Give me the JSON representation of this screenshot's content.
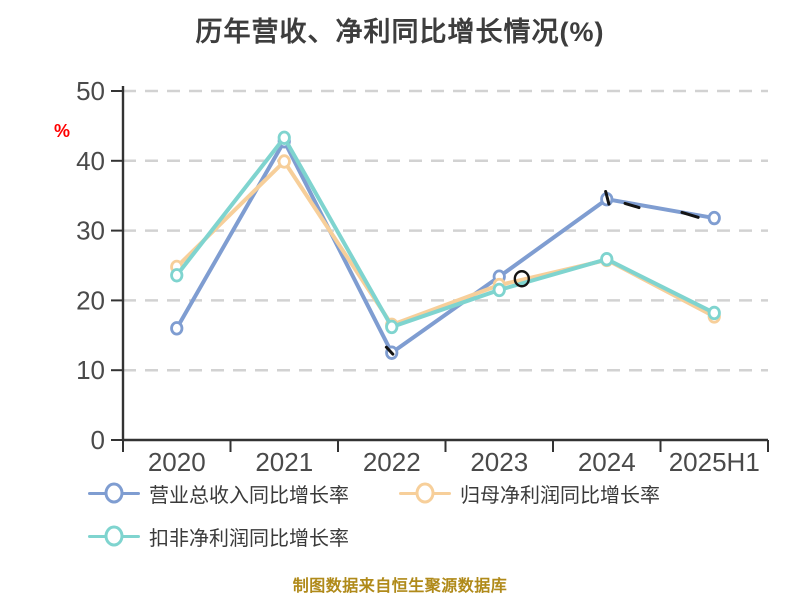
{
  "title": "历年营收、净利同比增长情况(%)",
  "footer": "制图数据来自恒生聚源数据库",
  "colors": {
    "background": "#ffffff",
    "title": "#3d3d3d",
    "axis": "#333333",
    "tick_label": "#4a4a4a",
    "grid": "#d2d2d2",
    "legend_text": "#3a3a3a",
    "footer": "#b08a1a",
    "percent_label": "#ff0000",
    "annotation": "#141414"
  },
  "y_axis": {
    "unit_label": "%",
    "ticks": [
      0,
      10,
      20,
      30,
      40,
      50
    ],
    "min": 0,
    "max": 50
  },
  "chart_data": {
    "type": "line",
    "title": "历年营收、净利同比增长情况(%)",
    "categories": [
      "2020",
      "2021",
      "2022",
      "2023",
      "2024",
      "2025H1"
    ],
    "series": [
      {
        "name": "营业总收入同比增长率",
        "color": "#7f9dd1",
        "values": [
          16.0,
          42.8,
          12.5,
          23.4,
          34.5,
          31.8
        ]
      },
      {
        "name": "归母净利润同比增长率",
        "color": "#f7cf9a",
        "values": [
          24.8,
          39.9,
          16.5,
          22.2,
          25.8,
          17.7
        ]
      },
      {
        "name": "扣非净利润同比增长率",
        "color": "#7fd4cf",
        "values": [
          23.6,
          43.3,
          16.2,
          21.5,
          25.9,
          18.2
        ]
      }
    ],
    "xlabel": "",
    "ylabel": "%",
    "ylim": [
      0,
      50
    ],
    "grid": "horizontal-dashed",
    "legend_position": "bottom"
  },
  "annotations": [
    {
      "type": "dash",
      "x": [
        1.95,
        2.01
      ],
      "v": [
        13.3,
        12.3
      ]
    },
    {
      "type": "circle",
      "x": 3.21,
      "v": 23.1,
      "r": 7
    },
    {
      "type": "dash",
      "x": [
        3.99,
        4.02
      ],
      "v": [
        35.6,
        33.8
      ]
    },
    {
      "type": "dash",
      "x": [
        4.17,
        4.3
      ],
      "v": [
        33.9,
        33.3
      ]
    },
    {
      "type": "dash",
      "x": [
        4.7,
        4.85
      ],
      "v": [
        32.6,
        31.9
      ]
    }
  ]
}
